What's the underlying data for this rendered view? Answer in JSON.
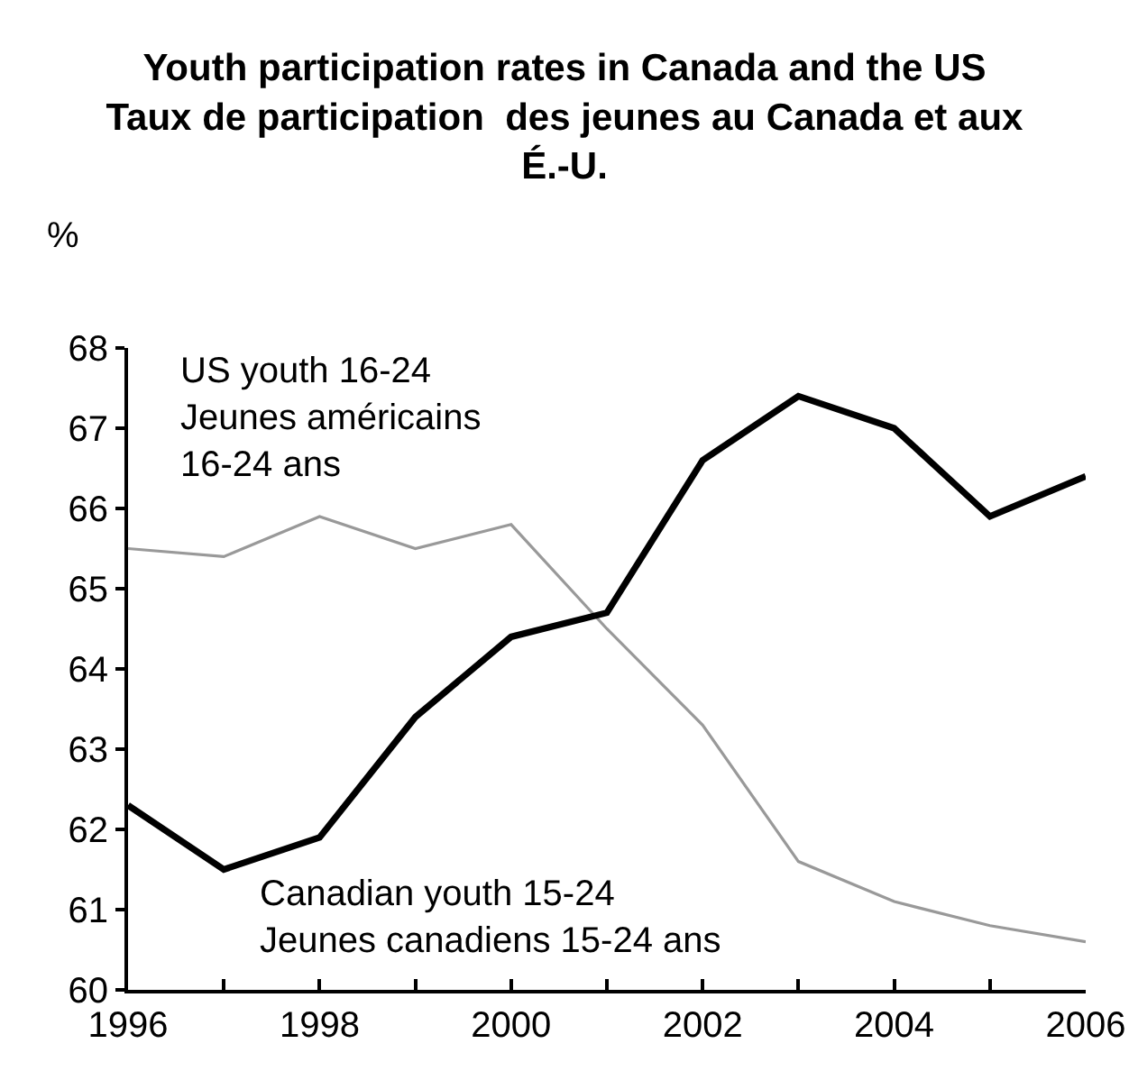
{
  "chart_data": {
    "type": "line",
    "title": "Youth participation rates in Canada and the US\nTaux de participation  des jeunes au Canada et aux\nÉ.-U.",
    "ylabel": "%",
    "x": [
      1996,
      1997,
      1998,
      1999,
      2000,
      2001,
      2002,
      2003,
      2004,
      2005,
      2006
    ],
    "series": [
      {
        "name": "US youth 16-24\nJeunes américains\n16-24 ans",
        "color": "#999999",
        "values": [
          65.5,
          65.4,
          65.9,
          65.5,
          65.8,
          64.5,
          63.3,
          61.6,
          61.1,
          60.8,
          60.6
        ]
      },
      {
        "name": "Canadian youth 15-24\nJeunes canadiens 15-24 ans",
        "color": "#000000",
        "values": [
          62.3,
          61.5,
          61.9,
          63.4,
          64.4,
          64.7,
          66.6,
          67.4,
          67.0,
          65.9,
          66.4
        ]
      }
    ],
    "xlim": [
      1996,
      2006
    ],
    "ylim": [
      60,
      68
    ],
    "xticks": [
      1996,
      {
        "value": 1997,
        "label": null
      },
      1998,
      {
        "value": 1999,
        "label": null
      },
      2000,
      {
        "value": 2001,
        "label": null
      },
      2002,
      {
        "value": 2003,
        "label": null
      },
      2004,
      {
        "value": 2005,
        "label": null
      },
      2006
    ],
    "yticks": [
      60,
      61,
      62,
      63,
      64,
      65,
      66,
      67,
      68
    ],
    "line_style": "solid"
  }
}
